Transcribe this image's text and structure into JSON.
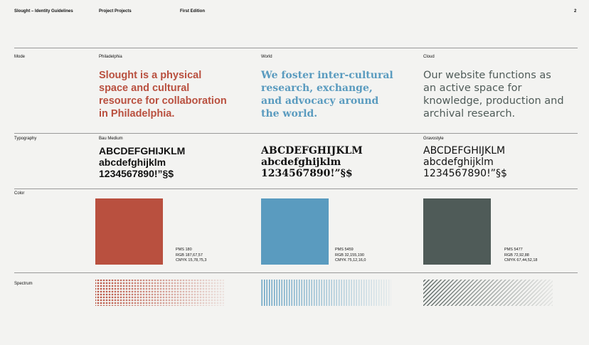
{
  "header": {
    "title": "Slought – Identity Guidelines",
    "project": "Project Projects",
    "edition": "First Edition",
    "page": "2"
  },
  "rows": {
    "mode": "Mode",
    "typography": "Typography",
    "color": "Color",
    "spectrum": "Spectrum"
  },
  "columns": [
    {
      "name": "Philadelphia",
      "color": "#b9503f",
      "statement": [
        "Slought is a physical",
        "space and cultural",
        "resource for collaboration",
        "in Philadelphia."
      ],
      "font": "Bau Medium",
      "glyphs": [
        "ABCDEFGHIJKLM",
        "abcdefghijklm",
        "1234567890!”§$"
      ],
      "pms": "PMS  180",
      "rgb": "RGB  187,67,57",
      "cmyk": "CMYK  15,78,75,3"
    },
    {
      "name": "World",
      "color": "#5a9bbf",
      "statement": [
        "We foster inter-cultural",
        "research, exchange,",
        "and advocacy around",
        "the world."
      ],
      "glyphs": [
        "ABCDEFGHIJKLM",
        "abcdefghijklm",
        "1234567890!”§$"
      ],
      "pms": "PMS  5459",
      "rgb": "RGB  32,155,190",
      "cmyk": "CMYK  75,12,16,0"
    },
    {
      "name": "Cloud",
      "color": "#4f5b58",
      "statement": [
        "Our website functions as",
        "an active space for",
        "knowledge, production and",
        "archival research."
      ],
      "font": "Gravostyle",
      "glyphs": [
        "ABCDEFGHIJKLM",
        "abcdefghijklm",
        "1234567890!”§$"
      ],
      "pms": "PMS  5477",
      "rgb": "RGB  72,92,88",
      "cmyk": "CMYK  67,44,52,18"
    }
  ]
}
